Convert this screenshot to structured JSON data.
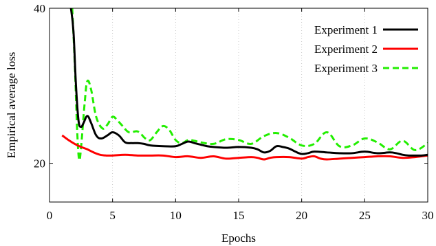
{
  "chart_data": {
    "type": "line",
    "title": "",
    "xlabel": "Epochs",
    "ylabel": "Empirical average loss",
    "xlim": [
      0,
      30
    ],
    "ylim": [
      15,
      40
    ],
    "xticks": [
      0,
      5,
      10,
      15,
      20,
      25,
      30
    ],
    "yticks": [
      20,
      40
    ],
    "grid": "vertical dotted",
    "legend_position": "top-right",
    "series": [
      {
        "name": "Experiment 1",
        "color": "#000000",
        "dash": "solid",
        "x": [
          1.7,
          1.9,
          2.1,
          2.3,
          2.5,
          2.7,
          3.0,
          3.3,
          3.7,
          4.1,
          4.6,
          5.0,
          5.5,
          6.0,
          6.5,
          7.0,
          7.5,
          8.0,
          9.0,
          10.0,
          10.5,
          11.0,
          11.5,
          12.0,
          12.5,
          13.0,
          14.0,
          15.0,
          16.0,
          16.5,
          17.0,
          17.5,
          18.0,
          18.5,
          19.0,
          19.5,
          20.0,
          20.5,
          21.0,
          22.0,
          23.0,
          24.0,
          25.0,
          26.0,
          27.0,
          27.5,
          28.0,
          28.5,
          29.0,
          29.5,
          30.0
        ],
        "y": [
          40.0,
          37.0,
          30.0,
          25.5,
          24.7,
          25.2,
          26.1,
          25.2,
          23.6,
          23.2,
          23.6,
          24.0,
          23.6,
          22.7,
          22.6,
          22.6,
          22.5,
          22.3,
          22.2,
          22.2,
          22.5,
          22.8,
          22.6,
          22.4,
          22.2,
          22.1,
          22.0,
          22.1,
          22.0,
          21.8,
          21.4,
          21.6,
          22.2,
          22.1,
          21.9,
          21.5,
          21.2,
          21.3,
          21.5,
          21.4,
          21.3,
          21.3,
          21.5,
          21.3,
          21.4,
          21.3,
          21.1,
          21.0,
          21.0,
          21.0,
          21.1
        ]
      },
      {
        "name": "Experiment 2",
        "color": "#ff0000",
        "dash": "solid",
        "x": [
          1.0,
          1.5,
          2.0,
          2.5,
          3.0,
          3.5,
          4.0,
          4.5,
          5.0,
          6.0,
          7.0,
          8.0,
          9.0,
          10.0,
          11.0,
          12.0,
          13.0,
          14.0,
          15.0,
          16.0,
          16.5,
          17.0,
          17.5,
          18.0,
          19.0,
          20.0,
          20.5,
          21.0,
          21.5,
          22.0,
          23.0,
          24.0,
          25.0,
          26.0,
          27.0,
          28.0,
          29.0,
          30.0
        ],
        "y": [
          23.6,
          23.0,
          22.5,
          22.1,
          21.8,
          21.4,
          21.1,
          21.0,
          21.0,
          21.1,
          21.0,
          21.0,
          21.0,
          20.8,
          20.9,
          20.7,
          20.9,
          20.6,
          20.7,
          20.8,
          20.7,
          20.5,
          20.7,
          20.8,
          20.8,
          20.6,
          20.8,
          20.9,
          20.6,
          20.5,
          20.6,
          20.7,
          20.8,
          20.9,
          20.9,
          20.7,
          20.8,
          21.0
        ]
      },
      {
        "name": "Experiment 3",
        "color": "#22ee00",
        "dash": "dashed",
        "x": [
          1.8,
          2.0,
          2.2,
          2.35,
          2.5,
          2.8,
          3.0,
          3.3,
          3.7,
          4.2,
          4.6,
          5.0,
          5.4,
          5.8,
          6.3,
          7.0,
          7.6,
          8.0,
          8.5,
          9.0,
          9.5,
          10.0,
          10.5,
          11.0,
          11.5,
          12.0,
          13.0,
          14.0,
          15.0,
          16.0,
          17.0,
          18.0,
          19.0,
          20.0,
          21.0,
          22.0,
          23.0,
          24.0,
          25.0,
          26.0,
          27.0,
          28.0,
          29.0,
          30.0
        ],
        "y": [
          40.0,
          33.0,
          24.0,
          20.5,
          22.0,
          28.0,
          30.6,
          29.5,
          26.0,
          24.5,
          25.0,
          26.0,
          25.5,
          24.8,
          24.0,
          24.1,
          23.2,
          23.0,
          24.0,
          24.8,
          24.3,
          23.0,
          22.6,
          23.0,
          22.9,
          22.7,
          22.5,
          23.1,
          23.0,
          22.5,
          23.5,
          23.9,
          23.3,
          22.3,
          22.5,
          24.0,
          22.2,
          22.3,
          23.2,
          22.7,
          21.8,
          22.9,
          21.7,
          22.6
        ]
      }
    ]
  }
}
